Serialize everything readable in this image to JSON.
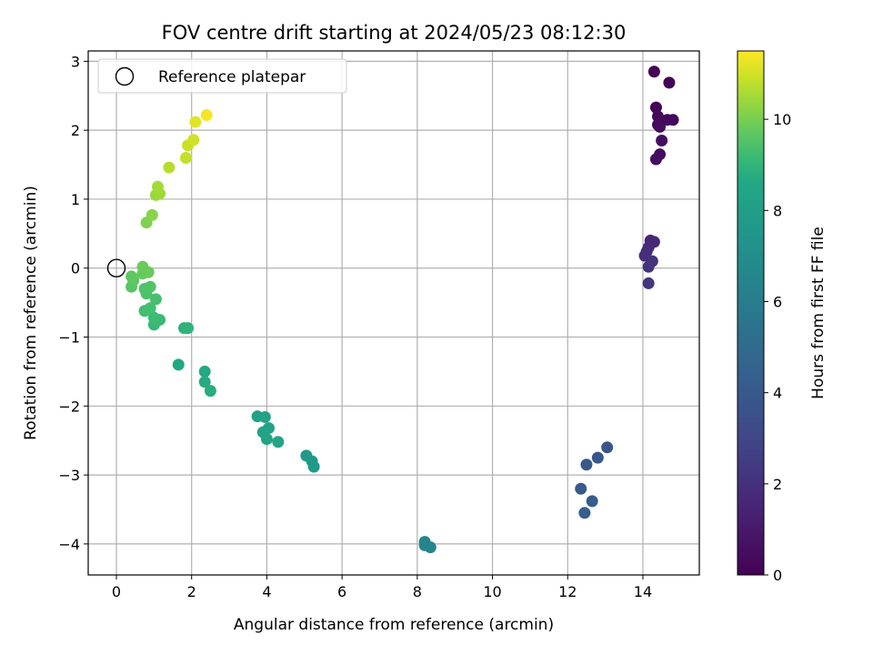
{
  "chart_data": {
    "type": "scatter",
    "title": "FOV centre drift starting at 2024/05/23 08:12:30",
    "xlabel": "Angular distance from reference (arcmin)",
    "ylabel": "Rotation from reference (arcmin)",
    "xlim": [
      -0.75,
      15.5
    ],
    "ylim": [
      -4.45,
      3.15
    ],
    "x_ticks": [
      0,
      2,
      4,
      6,
      8,
      10,
      12,
      14
    ],
    "y_ticks": [
      -4,
      -3,
      -2,
      -1,
      0,
      1,
      2,
      3
    ],
    "grid": true,
    "legend": {
      "placement": "top-left",
      "entries": [
        {
          "label": "Reference platepar"
        }
      ]
    },
    "reference_point": {
      "x": 0,
      "y": 0
    },
    "colorbar": {
      "label": "Hours from first FF file",
      "colormap": "viridis",
      "range": [
        0,
        11.5
      ],
      "ticks": [
        0,
        2,
        4,
        6,
        8,
        10
      ]
    },
    "points": [
      {
        "x": 14.3,
        "y": 2.85,
        "h": 0.05
      },
      {
        "x": 14.7,
        "y": 2.69,
        "h": 0.1
      },
      {
        "x": 14.35,
        "y": 2.33,
        "h": 0.15
      },
      {
        "x": 14.4,
        "y": 2.2,
        "h": 0.2
      },
      {
        "x": 14.65,
        "y": 2.15,
        "h": 0.25
      },
      {
        "x": 14.8,
        "y": 2.15,
        "h": 0.3
      },
      {
        "x": 14.4,
        "y": 2.08,
        "h": 0.35
      },
      {
        "x": 14.45,
        "y": 2.05,
        "h": 0.4
      },
      {
        "x": 14.5,
        "y": 1.85,
        "h": 0.45
      },
      {
        "x": 14.45,
        "y": 1.65,
        "h": 0.5
      },
      {
        "x": 14.35,
        "y": 1.58,
        "h": 0.55
      },
      {
        "x": 14.2,
        "y": 0.4,
        "h": 1.5
      },
      {
        "x": 14.3,
        "y": 0.38,
        "h": 1.6
      },
      {
        "x": 14.15,
        "y": 0.3,
        "h": 1.7
      },
      {
        "x": 14.1,
        "y": 0.24,
        "h": 1.8
      },
      {
        "x": 14.05,
        "y": 0.18,
        "h": 1.9
      },
      {
        "x": 14.25,
        "y": 0.1,
        "h": 2.0
      },
      {
        "x": 14.15,
        "y": 0.02,
        "h": 2.1
      },
      {
        "x": 14.15,
        "y": -0.22,
        "h": 2.2
      },
      {
        "x": 13.05,
        "y": -2.6,
        "h": 3.8
      },
      {
        "x": 12.8,
        "y": -2.75,
        "h": 3.9
      },
      {
        "x": 12.5,
        "y": -2.85,
        "h": 4.0
      },
      {
        "x": 12.35,
        "y": -3.2,
        "h": 4.1
      },
      {
        "x": 12.65,
        "y": -3.38,
        "h": 4.2
      },
      {
        "x": 12.45,
        "y": -3.55,
        "h": 4.3
      },
      {
        "x": 8.2,
        "y": -3.97,
        "h": 6.4
      },
      {
        "x": 8.2,
        "y": -4.02,
        "h": 6.45
      },
      {
        "x": 8.35,
        "y": -4.05,
        "h": 6.5
      },
      {
        "x": 5.05,
        "y": -2.72,
        "h": 7.6
      },
      {
        "x": 5.2,
        "y": -2.8,
        "h": 7.65
      },
      {
        "x": 5.25,
        "y": -2.88,
        "h": 7.7
      },
      {
        "x": 3.75,
        "y": -2.15,
        "h": 8.2
      },
      {
        "x": 3.95,
        "y": -2.16,
        "h": 8.25
      },
      {
        "x": 4.05,
        "y": -2.32,
        "h": 8.3
      },
      {
        "x": 3.9,
        "y": -2.38,
        "h": 8.35
      },
      {
        "x": 4.0,
        "y": -2.48,
        "h": 8.4
      },
      {
        "x": 4.3,
        "y": -2.52,
        "h": 8.45
      },
      {
        "x": 1.65,
        "y": -1.4,
        "h": 8.6
      },
      {
        "x": 2.35,
        "y": -1.5,
        "h": 8.65
      },
      {
        "x": 2.35,
        "y": -1.65,
        "h": 8.7
      },
      {
        "x": 2.5,
        "y": -1.78,
        "h": 8.75
      },
      {
        "x": 1.8,
        "y": -0.87,
        "h": 8.9
      },
      {
        "x": 1.9,
        "y": -0.87,
        "h": 8.95
      },
      {
        "x": 1.0,
        "y": -0.82,
        "h": 9.1
      },
      {
        "x": 1.15,
        "y": -0.75,
        "h": 9.15
      },
      {
        "x": 1.0,
        "y": -0.72,
        "h": 9.2
      },
      {
        "x": 0.75,
        "y": -0.62,
        "h": 9.3
      },
      {
        "x": 0.9,
        "y": -0.58,
        "h": 9.35
      },
      {
        "x": 1.05,
        "y": -0.45,
        "h": 9.4
      },
      {
        "x": 0.8,
        "y": -0.37,
        "h": 9.45
      },
      {
        "x": 0.75,
        "y": -0.3,
        "h": 9.5
      },
      {
        "x": 0.9,
        "y": -0.27,
        "h": 9.55
      },
      {
        "x": 0.4,
        "y": -0.27,
        "h": 9.6
      },
      {
        "x": 0.45,
        "y": -0.18,
        "h": 9.65
      },
      {
        "x": 0.4,
        "y": -0.12,
        "h": 9.7
      },
      {
        "x": 0.7,
        "y": -0.08,
        "h": 9.75
      },
      {
        "x": 0.85,
        "y": -0.06,
        "h": 9.8
      },
      {
        "x": 0.7,
        "y": 0.02,
        "h": 9.85
      },
      {
        "x": 0.8,
        "y": 0.66,
        "h": 10.1
      },
      {
        "x": 0.95,
        "y": 0.77,
        "h": 10.2
      },
      {
        "x": 1.05,
        "y": 1.06,
        "h": 10.4
      },
      {
        "x": 1.15,
        "y": 1.08,
        "h": 10.45
      },
      {
        "x": 1.1,
        "y": 1.18,
        "h": 10.5
      },
      {
        "x": 1.4,
        "y": 1.46,
        "h": 10.7
      },
      {
        "x": 1.85,
        "y": 1.6,
        "h": 10.85
      },
      {
        "x": 1.9,
        "y": 1.78,
        "h": 10.9
      },
      {
        "x": 2.05,
        "y": 1.86,
        "h": 11.0
      },
      {
        "x": 2.1,
        "y": 2.12,
        "h": 11.2
      },
      {
        "x": 2.4,
        "y": 2.22,
        "h": 11.4
      }
    ]
  }
}
